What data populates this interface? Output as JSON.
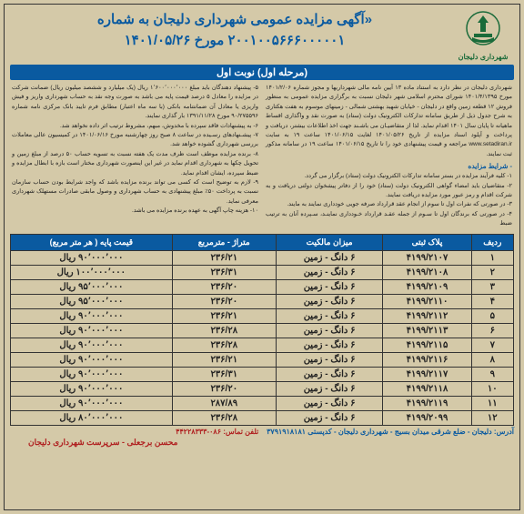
{
  "header": {
    "logo_caption": "شهرداری دلیجان",
    "title_l1": "«آگهی مزایده عمومی شهرداری دلیجان به شماره",
    "title_l2": "۲۰۰۱۰۰۵۶۶۶۰۰۰۰۰۱ مورخ ۱۴۰۱/۰۵/۲۶",
    "stage": "(مرحله اول) نوبت اول"
  },
  "intro_right": "شهرداری دلیجان در نظر دارد به استناد ماده ۱۳ آیین نامه مالی شهرداریها و مجوز شماره ۱۴۰۱/۲/۰۶ مورخ ۱۴۰۱/۴/۱۳۹۵ شورای محترم اسلامی شهر دلیجان نسبت به برگزاری مزایده عمومی به منظور فروش ۱۲ قطعه زمین واقع در دلیجان - خیابان شهید بهشتی شمالی - زمینهای موسوم به هفت هکتاری به شرح جدول ذیل از طریق سامانه تدارکات الکترونیک دولت (ستاد) به صورت نقد و واگذاری اقساط ماهیانه تا پایان سال ۱۴۰۱ اقدام نماید. لذا از متقاضیـان می باشـند جهت اخذ اطلاعات بیشتر، دریافت و پرداخت و آپلود اسناد مزایده از تاریخ ۱۴۰۱/۰۵/۲۶ لغایت ۱۴۰۱/۰۶/۱۵ ساعت ۱۹ به سایت www.setadiran.ir مراجعه و قیمت پیشنهادی خود را تا تاریخ ۱۴۰۱/۰۶/۱۵ ساعت ۱۹ در سامانه مذکور ثبت نمایند.",
  "conditions_title": "- شرایط مزایده",
  "conditions": [
    "۱- کلیه فرآیند مزایده در بستر سامانه تدارکات الکترونیک دولت (ستاد) برگزار می گردد.",
    "۲- متقاضیان باید امضاء گواهی الکترونیک دولت (ستاد) خود را از دفاتر پیشخوان دولتی دریافت و به شرکت اقدام و رمز عبور مورد مزایده دریافت نمایند.",
    "۳- در صورتی که نفرات اول تا سوم از انجام عقد قرارداد صرفه جویی خودداری نمایند به مایند.",
    "۴- در صورتی که برندگان اول تا سـوم از جمله عقـد قرارداد خـودداری نماینـد، سـپرده آنان به ترتیب ضبط"
  ],
  "intro_left": [
    "۵- پیشنهاد دهندگان باید مبلغ ۱٬۶۰۰٬۰۰۰٬۰۰۰ ریال (یک میلیارد و ششصد میلیون ریال) ضمانت شرکت در مزایده را معادل ۵ درصد قیمت پایه می باشد به صورت وجه نقد به حساب شهرداری واریز و فیش واریزی یا معادل آن ضمانتنامه بانکی (با سه ماه اعتبار) مطابق فرم تایید بانک مرکزی نامه شماره ۹۰/۲۷۵۵۹۶ مورخ ۱۳۹۱/۱۱/۲۸ بار گذاری نمایند.",
    "۶- به پیشنهادات فاقد سپرده با مخدوش، مبهم، مشروط ترتیب اثر داده نخواهد شد.",
    "۷- پیشـنهادهای رسـیده در ساعت ۸ صبح روز چهارشنبه مورخ ۱۴۰۱/۰۶/۱۶ در کمیسیون عالی معاملات بررسی شهرداری گشوده خواهد شد.",
    "۸- برنده مزایده موظف است ظرف مدت یک هفته نسبت به تسویه حساب ۵۰ درصد از مبلغ زمین و تحویل چکها به شهرداری اقدام نماید در غیر این اینصورت شهرداری مختار است بازه با ابطال مزایده و ضبط سپرده، ایشان اقدام نماید.",
    "۹- لازم به توضیح است که کسی می تواند برنده مزایده باشد که واجد شرایط بودن حساب سازمان نسبت به پرداخت ۵۰٪ مبلغ پیشنهادی به حساب شهرداری و وصول مابقی صادرات مستهلک شهرداری معرفی نماید.",
    "۱۰- هزینه چاپ آگهی به عهده برنده مزایده می باشد."
  ],
  "table": {
    "headers": [
      "ردیف",
      "پلاک ثبتی",
      "میزان مالکیت",
      "متراژ - مترمربع",
      "قیمت پایه ( هر متر مربع)"
    ],
    "rows": [
      [
        "۱",
        "۴۱۹۹/۲۱۰۷",
        "۶ دانگ - زمین",
        "۲۳۶/۲۱",
        "۹۰٬۰۰۰٬۰۰۰ ریال"
      ],
      [
        "۲",
        "۴۱۹۹/۲۱۰۸",
        "۶ دانگ - زمین",
        "۲۳۶/۳۱",
        "۱۰۰٬۰۰۰٬۰۰۰ ریال"
      ],
      [
        "۳",
        "۴۱۹۹/۲۱۰۹",
        "۶ دانگ - زمین",
        "۲۳۶/۲۰",
        "۹۵٬۰۰۰٬۰۰۰ ریال"
      ],
      [
        "۴",
        "۴۱۹۹/۲۱۱۰",
        "۶ دانگ - زمین",
        "۲۳۶/۲۰",
        "۹۵٬۰۰۰٬۰۰۰ ریال"
      ],
      [
        "۵",
        "۴۱۹۹/۲۱۱۲",
        "۶ دانگ - زمین",
        "۲۳۶/۲۱",
        "۹۰٬۰۰۰٬۰۰۰ ریال"
      ],
      [
        "۶",
        "۴۱۹۹/۲۱۱۳",
        "۶ دانگ - زمین",
        "۲۳۶/۲۸",
        "۹۰٬۰۰۰٬۰۰۰ ریال"
      ],
      [
        "۷",
        "۴۱۹۹/۲۱۱۵",
        "۶ دانگ - زمین",
        "۲۳۶/۲۸",
        "۹۰٬۰۰۰٬۰۰۰ ریال"
      ],
      [
        "۸",
        "۴۱۹۹/۲۱۱۶",
        "۶ دانگ - زمین",
        "۲۳۶/۲۱",
        "۹۰٬۰۰۰٬۰۰۰ ریال"
      ],
      [
        "۹",
        "۴۱۹۹/۲۱۱۷",
        "۶ دانگ - زمین",
        "۲۳۶/۳۱",
        "۹۰٬۰۰۰٬۰۰۰ ریال"
      ],
      [
        "۱۰",
        "۴۱۹۹/۲۱۱۸",
        "۶ دانگ - زمین",
        "۲۳۶/۲۰",
        "۹۰٬۰۰۰٬۰۰۰ ریال"
      ],
      [
        "۱۱",
        "۴۱۹۹/۲۱۱۹",
        "۶ دانگ - زمین",
        "۲۸۷/۸۹",
        "۹۰٬۰۰۰٬۰۰۰ ریال"
      ],
      [
        "۱۲",
        "۴۱۹۹/۲۰۹۹",
        "۶ دانگ - زمین",
        "۲۳۶/۲۸",
        "۸۰٬۰۰۰٬۰۰۰ ریال"
      ]
    ]
  },
  "footer": {
    "address": "آدرس: دلیجان - ضلع شرقی میدان بسیج - شهرداری دلیجان - کدپستی ۳۷۹۱۹۱۸۱۸۱",
    "phone_label": "تلفن تماس: ",
    "phone": "۰۸۶-۴۴۲۲۸۳۳۳",
    "signature": "محسن برجعلی - سرپرست شهرداری دلیجان"
  },
  "colors": {
    "bg": "#d4c9a8",
    "blue": "#0a5aa0",
    "red": "#b02020",
    "green": "#1a6b3a"
  }
}
